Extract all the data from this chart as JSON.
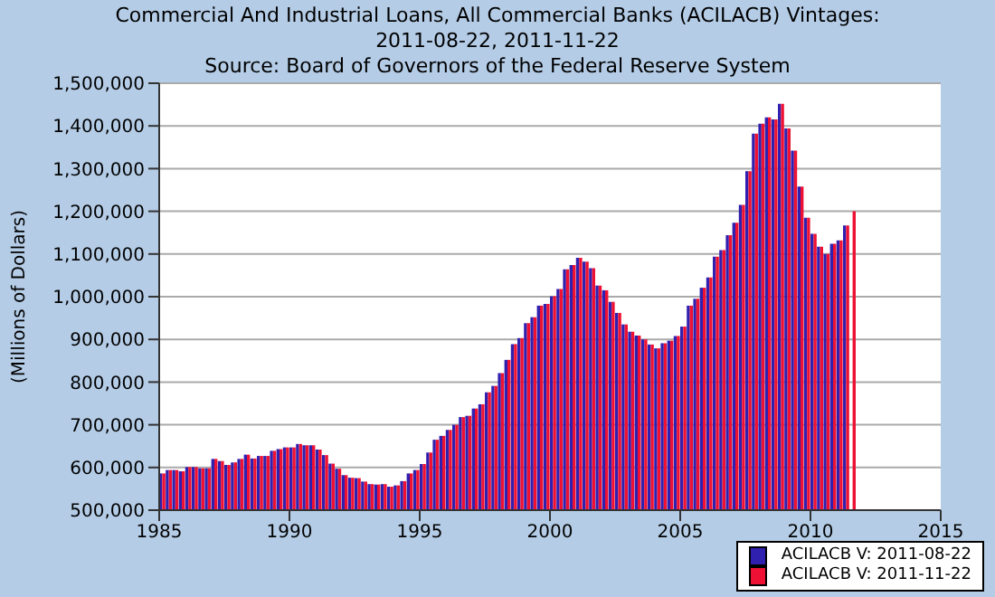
{
  "chart_data": {
    "type": "bar",
    "title": "Commercial And Industrial Loans, All Commercial Banks (ACILACB) Vintages: 2011-08-22, 2011-11-22",
    "subtitle": "Source: Board of Governors of the Federal Reserve System",
    "ylabel": "(Millions of Dollars)",
    "x": [
      1985.125,
      1985.375,
      1985.625,
      1985.875,
      1986.125,
      1986.375,
      1986.625,
      1986.875,
      1987.125,
      1987.375,
      1987.625,
      1987.875,
      1988.125,
      1988.375,
      1988.625,
      1988.875,
      1989.125,
      1989.375,
      1989.625,
      1989.875,
      1990.125,
      1990.375,
      1990.625,
      1990.875,
      1991.125,
      1991.375,
      1991.625,
      1991.875,
      1992.125,
      1992.375,
      1992.625,
      1992.875,
      1993.125,
      1993.375,
      1993.625,
      1993.875,
      1994.125,
      1994.375,
      1994.625,
      1994.875,
      1995.125,
      1995.375,
      1995.625,
      1995.875,
      1996.125,
      1996.375,
      1996.625,
      1996.875,
      1997.125,
      1997.375,
      1997.625,
      1997.875,
      1998.125,
      1998.375,
      1998.625,
      1998.875,
      1999.125,
      1999.375,
      1999.625,
      1999.875,
      2000.125,
      2000.375,
      2000.625,
      2000.875,
      2001.125,
      2001.375,
      2001.625,
      2001.875,
      2002.125,
      2002.375,
      2002.625,
      2002.875,
      2003.125,
      2003.375,
      2003.625,
      2003.875,
      2004.125,
      2004.375,
      2004.625,
      2004.875,
      2005.125,
      2005.375,
      2005.625,
      2005.875,
      2006.125,
      2006.375,
      2006.625,
      2006.875,
      2007.125,
      2007.375,
      2007.625,
      2007.875,
      2008.125,
      2008.375,
      2008.625,
      2008.875,
      2009.125,
      2009.375,
      2009.625,
      2009.875,
      2010.125,
      2010.375,
      2010.625,
      2010.875,
      2011.125,
      2011.375,
      2011.625
    ],
    "series": [
      {
        "name": "ACILACB V: 2011-08-22",
        "color": "#3020b0",
        "values": [
          586000,
          594000,
          594000,
          591000,
          601000,
          601000,
          598000,
          598000,
          620000,
          615000,
          606000,
          612000,
          620000,
          630000,
          621000,
          627000,
          627000,
          639000,
          643000,
          647000,
          647000,
          655000,
          652000,
          652000,
          642000,
          629000,
          609000,
          597000,
          582000,
          576000,
          575000,
          567000,
          561000,
          560000,
          561000,
          555000,
          558000,
          568000,
          586000,
          594000,
          608000,
          635000,
          665000,
          674000,
          688000,
          700000,
          718000,
          721000,
          738000,
          748000,
          776000,
          791000,
          821000,
          852000,
          889000,
          903000,
          938000,
          952000,
          979000,
          983000,
          1001000,
          1018000,
          1064000,
          1074000,
          1091000,
          1082000,
          1067000,
          1026000,
          1015000,
          988000,
          962000,
          935000,
          918000,
          909000,
          900000,
          888000,
          879000,
          891000,
          897000,
          908000,
          930000,
          979000,
          995000,
          1021000,
          1045000,
          1094000,
          1109000,
          1144000,
          1173000,
          1215000,
          1294000,
          1382000,
          1405000,
          1420000,
          1415000,
          1452000,
          1394000,
          1342000,
          1258000,
          1185000,
          1147000,
          1117000,
          1100000,
          1124000,
          1132000,
          1167000,
          null
        ]
      },
      {
        "name": "ACILACB V: 2011-11-22",
        "color": "#ee1133",
        "values": [
          586000,
          594000,
          594000,
          591000,
          601000,
          601000,
          598000,
          598000,
          620000,
          615000,
          606000,
          612000,
          620000,
          630000,
          621000,
          627000,
          627000,
          639000,
          643000,
          647000,
          647000,
          655000,
          652000,
          652000,
          642000,
          629000,
          609000,
          597000,
          582000,
          576000,
          575000,
          567000,
          561000,
          560000,
          561000,
          555000,
          558000,
          568000,
          586000,
          594000,
          608000,
          635000,
          665000,
          674000,
          688000,
          700000,
          718000,
          721000,
          738000,
          748000,
          776000,
          791000,
          821000,
          852000,
          889000,
          903000,
          938000,
          952000,
          979000,
          983000,
          1001000,
          1018000,
          1064000,
          1074000,
          1091000,
          1082000,
          1067000,
          1026000,
          1015000,
          988000,
          962000,
          935000,
          918000,
          909000,
          900000,
          888000,
          879000,
          891000,
          897000,
          908000,
          930000,
          979000,
          995000,
          1021000,
          1045000,
          1094000,
          1109000,
          1144000,
          1173000,
          1215000,
          1294000,
          1382000,
          1405000,
          1420000,
          1415000,
          1452000,
          1394000,
          1342000,
          1258000,
          1185000,
          1147000,
          1117000,
          1100000,
          1124000,
          1132000,
          1167000,
          1200000
        ]
      }
    ],
    "xlim": [
      1985,
      2015
    ],
    "xticks": [
      1985,
      1990,
      1995,
      2000,
      2005,
      2010,
      2015
    ],
    "ylim": [
      500000,
      1500000
    ],
    "yticks": [
      {
        "value": 500000,
        "label": "500,000"
      },
      {
        "value": 600000,
        "label": "600,000"
      },
      {
        "value": 700000,
        "label": "700,000"
      },
      {
        "value": 800000,
        "label": "800,000"
      },
      {
        "value": 900000,
        "label": "900,000"
      },
      {
        "value": 1000000,
        "label": "1,000,000"
      },
      {
        "value": 1100000,
        "label": "1,100,000"
      },
      {
        "value": 1200000,
        "label": "1,200,000"
      },
      {
        "value": 1300000,
        "label": "1,300,000"
      },
      {
        "value": 1400000,
        "label": "1,400,000"
      },
      {
        "value": 1500000,
        "label": "1,500,000"
      }
    ],
    "grid": "y",
    "legend": "bottom right"
  }
}
